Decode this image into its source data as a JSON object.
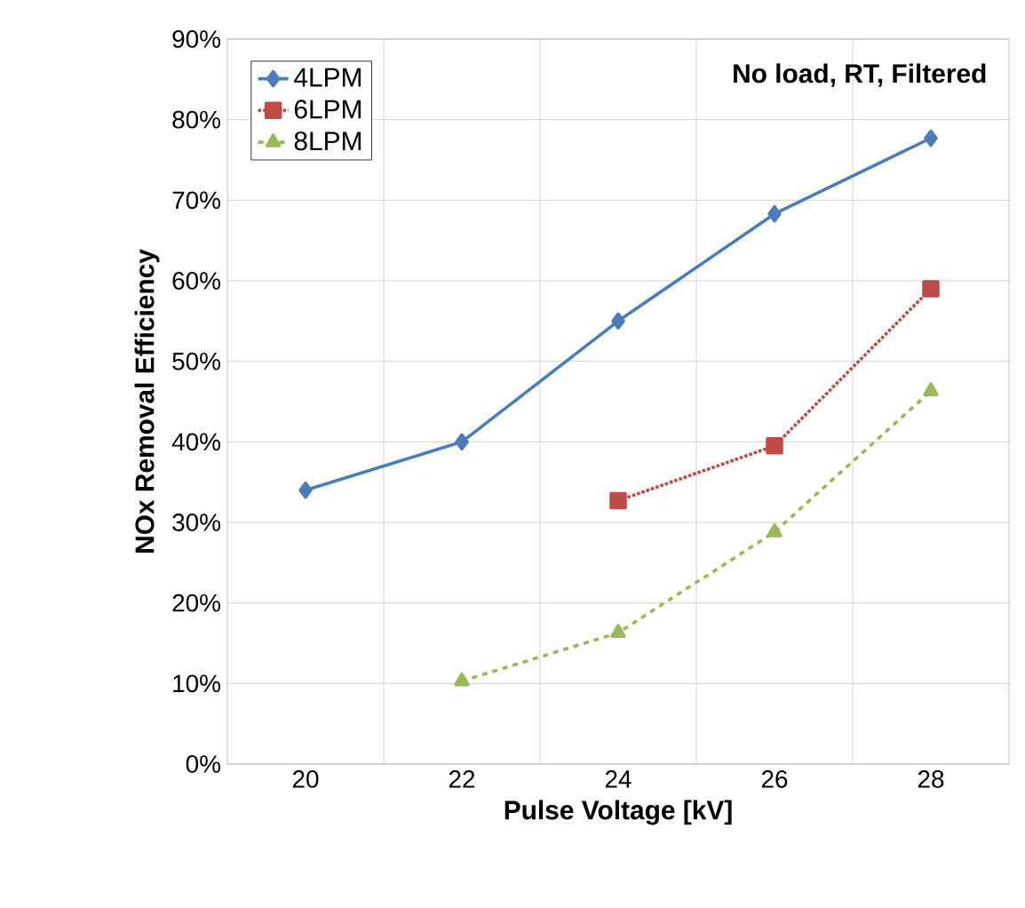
{
  "chart_data": {
    "type": "line",
    "xlabel": "Pulse Voltage [kV]",
    "ylabel": "NOx Removal Efficiency",
    "categories": [
      "20",
      "22",
      "24",
      "26",
      "28"
    ],
    "series": [
      {
        "name": "4LPM",
        "color": "#4a7ebb",
        "marker": "diamond",
        "line_style": "solid",
        "values": [
          34,
          40,
          55,
          68.3,
          77.7
        ]
      },
      {
        "name": "6LPM",
        "color": "#be4b48",
        "marker": "square",
        "line_style": "dotted",
        "values": [
          null,
          null,
          32.7,
          39.5,
          59
        ]
      },
      {
        "name": "8LPM",
        "color": "#98b954",
        "marker": "triangle",
        "line_style": "dashed",
        "values": [
          null,
          10.3,
          16.3,
          28.8,
          46.3
        ]
      }
    ],
    "ylim": [
      0,
      90
    ],
    "yticks": [
      {
        "value": 0,
        "label": "0%"
      },
      {
        "value": 10,
        "label": "10%"
      },
      {
        "value": 20,
        "label": "20%"
      },
      {
        "value": 30,
        "label": "30%"
      },
      {
        "value": 40,
        "label": "40%"
      },
      {
        "value": 50,
        "label": "50%"
      },
      {
        "value": 60,
        "label": "60%"
      },
      {
        "value": 70,
        "label": "70%"
      },
      {
        "value": 80,
        "label": "80%"
      },
      {
        "value": 90,
        "label": "90%"
      }
    ],
    "grid": true,
    "legend": "top left",
    "annotations": [
      "No load, RT, Filtered"
    ]
  }
}
